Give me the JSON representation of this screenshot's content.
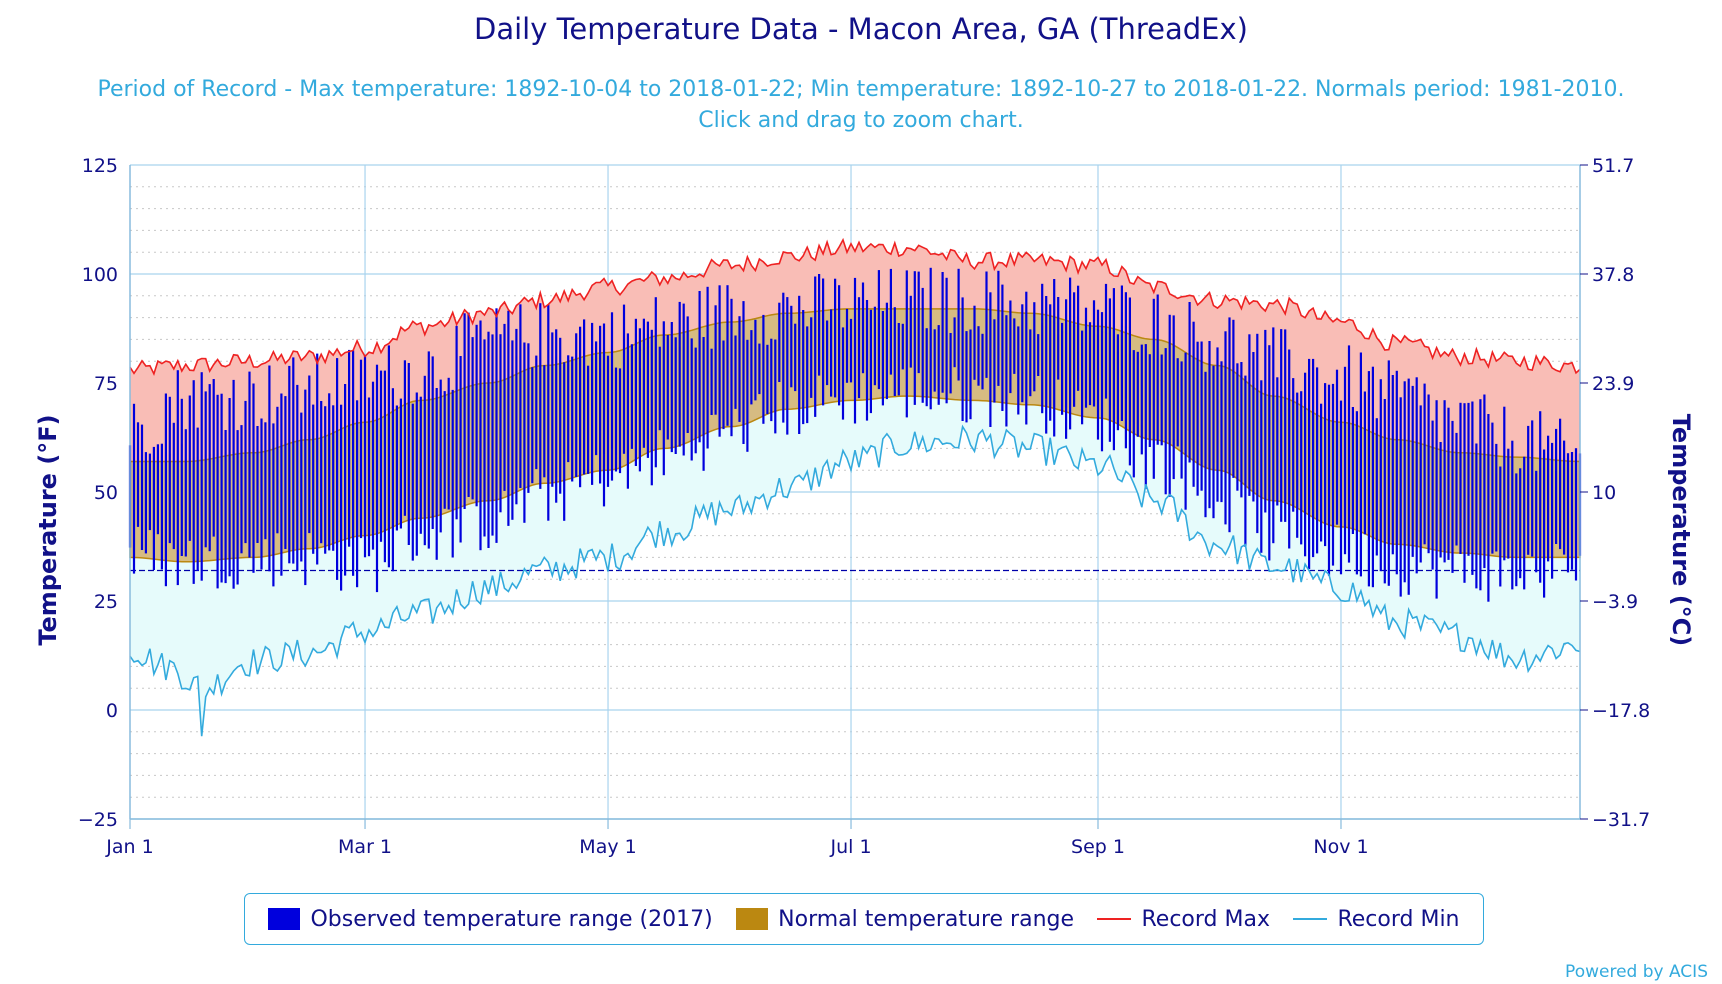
{
  "chart_data": {
    "type": "area",
    "title": "Daily Temperature Data - Macon Area, GA (ThreadEx)",
    "subtitle": "Period of Record - Max temperature: 1892-10-04 to 2018-01-22; Min temperature: 1892-10-27 to 2018-01-22. Normals period: 1981-2010. Click and drag to zoom chart.",
    "ylabel_left": "Temperature (°F)",
    "ylabel_right": "Temperature (°C)",
    "ylim_f": [
      -25,
      125
    ],
    "yticks_left": [
      "125",
      "100",
      "75",
      "50",
      "25",
      "0",
      "−25"
    ],
    "yticks_left_values": [
      125,
      100,
      75,
      50,
      25,
      0,
      -25
    ],
    "yticks_right": [
      "51.7",
      "37.8",
      "23.9",
      "10",
      "−3.9",
      "−17.8",
      "−31.7"
    ],
    "xticks": [
      "Jan 1",
      "Mar 1",
      "May 1",
      "Jul 1",
      "Sep 1",
      "Nov 1"
    ],
    "xticks_day_of_year": [
      1,
      60,
      121,
      182,
      244,
      305
    ],
    "freezing_line_f": 32,
    "grid": true,
    "legend_position": "bottom",
    "series": [
      {
        "name": "Observed temperature range (2017)",
        "type": "columnrange",
        "color": "#0000dd",
        "anchors_doy": [
          1,
          15,
          32,
          46,
          60,
          74,
          91,
          105,
          121,
          135,
          152,
          166,
          182,
          196,
          213,
          227,
          244,
          258,
          274,
          288,
          305,
          319,
          335,
          349,
          365
        ],
        "high_anchors": [
          64,
          72,
          72,
          74,
          76,
          78,
          85,
          86,
          86,
          88,
          91,
          92,
          93,
          94,
          94,
          93,
          92,
          89,
          85,
          80,
          76,
          72,
          66,
          62,
          58
        ],
        "low_anchors": [
          36,
          34,
          35,
          35,
          33,
          40,
          43,
          49,
          53,
          58,
          64,
          69,
          72,
          73,
          72,
          71,
          66,
          57,
          48,
          40,
          36,
          33,
          32,
          31,
          33
        ]
      },
      {
        "name": "Normal temperature range",
        "type": "arearange",
        "color": "#bb8811",
        "anchors_doy": [
          1,
          15,
          32,
          46,
          60,
          74,
          91,
          105,
          121,
          135,
          152,
          166,
          182,
          196,
          213,
          227,
          244,
          258,
          274,
          288,
          305,
          319,
          335,
          349,
          365
        ],
        "high_anchors": [
          57,
          57,
          59,
          62,
          66,
          71,
          75,
          79,
          82,
          86,
          89,
          91,
          92,
          92,
          92,
          91,
          88,
          85,
          79,
          72,
          66,
          62,
          59,
          58,
          57
        ],
        "low_anchors": [
          35,
          34,
          35,
          37,
          40,
          44,
          48,
          52,
          55,
          60,
          65,
          69,
          71,
          72,
          71,
          70,
          67,
          62,
          55,
          48,
          42,
          38,
          36,
          35,
          35
        ]
      },
      {
        "name": "Record Max",
        "type": "line",
        "color": "#ee2222",
        "anchors_doy": [
          1,
          15,
          32,
          46,
          60,
          74,
          91,
          105,
          121,
          135,
          152,
          166,
          182,
          196,
          213,
          227,
          244,
          258,
          274,
          288,
          305,
          319,
          335,
          349,
          365
        ],
        "values": [
          78,
          79,
          80,
          81,
          83,
          88,
          91,
          94,
          97,
          99,
          102,
          104,
          106,
          106,
          103,
          103,
          102,
          97,
          94,
          93,
          89,
          84,
          81,
          80,
          79
        ]
      },
      {
        "name": "Record Min",
        "type": "line",
        "color": "#33aadd",
        "anchors_doy": [
          1,
          10,
          20,
          30,
          46,
          60,
          74,
          91,
          105,
          121,
          135,
          152,
          166,
          182,
          196,
          213,
          227,
          244,
          258,
          274,
          288,
          305,
          319,
          335,
          349,
          365
        ],
        "values": [
          14,
          10,
          5,
          11,
          13,
          18,
          22,
          28,
          32,
          35,
          41,
          46,
          51,
          57,
          61,
          62,
          60,
          56,
          48,
          38,
          33,
          28,
          20,
          17,
          12,
          15
        ]
      }
    ]
  },
  "credits": "Powered by ACIS"
}
